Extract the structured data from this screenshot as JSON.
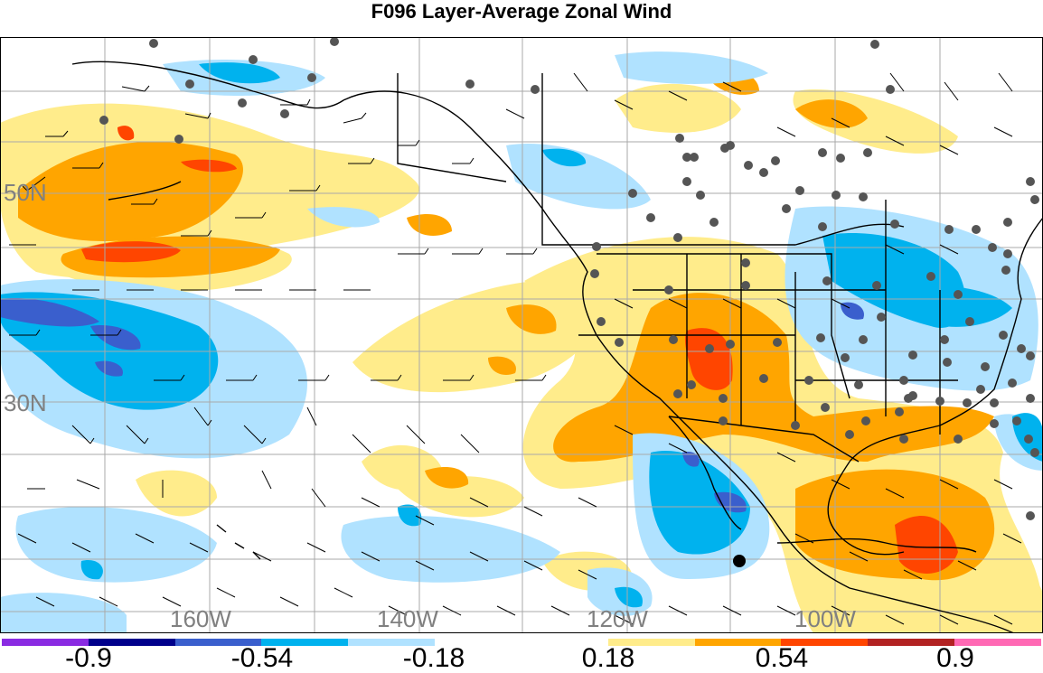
{
  "title": "F096 Layer-Average Zonal Wind",
  "latitude_labels": [
    "50N",
    "30N"
  ],
  "longitude_labels": [
    "160W",
    "140W",
    "120W",
    "100W"
  ],
  "colorbar": {
    "colors": [
      "#8a2be2",
      "#00008b",
      "#3a5fcd",
      "#00b2ee",
      "#b0e2ff",
      "#ffffff",
      "#ffffff",
      "#ffec8b",
      "#ffa500",
      "#ff4500",
      "#b22222",
      "#ff69b4"
    ],
    "tick_labels": [
      "-0.9",
      "-0.54",
      "-0.18",
      "0.18",
      "0.54",
      "0.9"
    ]
  }
}
